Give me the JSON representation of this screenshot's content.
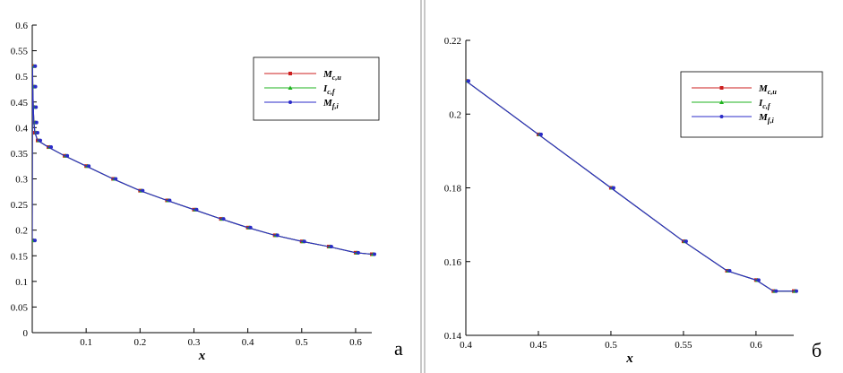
{
  "chart_data": [
    {
      "type": "line",
      "panel_label": "а",
      "xlabel": "x",
      "ylabel": "",
      "xlim": [
        0,
        0.63
      ],
      "ylim": [
        0,
        0.6
      ],
      "xticks": [
        0.1,
        0.2,
        0.3,
        0.4,
        0.5,
        0.6
      ],
      "xtick_labels": [
        "0.1",
        "0.2",
        "0.3",
        "0.4",
        "0.5",
        "0.6"
      ],
      "yticks": [
        0.05,
        0.1,
        0.15,
        0.2,
        0.25,
        0.3,
        0.35,
        0.4,
        0.45,
        0.5,
        0.55,
        0.6
      ],
      "ytick_labels": [
        "0.05",
        "0.1",
        "0.15",
        "0.2",
        "0.25",
        "0.3",
        "0.35",
        "0.4",
        "0.45",
        "0.5",
        "0.55",
        "0.6"
      ],
      "origin_label": "0",
      "grid": false,
      "legend_placement": "top-right",
      "x": [
        0.0,
        0.0005,
        0.001,
        0.002,
        0.003,
        0.005,
        0.01,
        0.03,
        0.06,
        0.1,
        0.15,
        0.2,
        0.25,
        0.3,
        0.35,
        0.4,
        0.45,
        0.5,
        0.55,
        0.6,
        0.63
      ],
      "series": [
        {
          "name": "M",
          "sub": "c,u",
          "color": "#cc1f1f",
          "marker": "square",
          "y": [
            0.18,
            0.52,
            0.48,
            0.44,
            0.41,
            0.39,
            0.375,
            0.362,
            0.345,
            0.325,
            0.3,
            0.277,
            0.258,
            0.24,
            0.222,
            0.205,
            0.19,
            0.178,
            0.168,
            0.156,
            0.153
          ]
        },
        {
          "name": "I",
          "sub": "c,f",
          "color": "#1fb31f",
          "marker": "triangle",
          "y": [
            0.18,
            0.52,
            0.48,
            0.44,
            0.41,
            0.39,
            0.375,
            0.362,
            0.345,
            0.325,
            0.3,
            0.277,
            0.258,
            0.24,
            0.222,
            0.205,
            0.19,
            0.178,
            0.168,
            0.156,
            0.153
          ]
        },
        {
          "name": "M",
          "sub": "f,i",
          "color": "#2b2bc8",
          "marker": "circle",
          "y": [
            0.18,
            0.52,
            0.48,
            0.44,
            0.41,
            0.39,
            0.375,
            0.362,
            0.345,
            0.325,
            0.3,
            0.277,
            0.258,
            0.24,
            0.222,
            0.205,
            0.19,
            0.178,
            0.168,
            0.156,
            0.153
          ]
        }
      ]
    },
    {
      "type": "line",
      "panel_label": "б",
      "xlabel": "x",
      "ylabel": "",
      "xlim": [
        0.4,
        0.626
      ],
      "ylim": [
        0.14,
        0.22
      ],
      "xticks": [
        0.4,
        0.45,
        0.5,
        0.55,
        0.6
      ],
      "xtick_labels": [
        "0.4",
        "0.45",
        "0.5",
        "0.55",
        "0.6"
      ],
      "yticks": [
        0.14,
        0.16,
        0.18,
        0.2,
        0.22
      ],
      "ytick_labels": [
        "0.14",
        "0.16",
        "0.18",
        "0.2",
        "0.22"
      ],
      "grid": false,
      "legend_placement": "top-right",
      "x": [
        0.4,
        0.45,
        0.5,
        0.55,
        0.58,
        0.6,
        0.612,
        0.626
      ],
      "series": [
        {
          "name": "M",
          "sub": "c,u",
          "color": "#cc1f1f",
          "marker": "square",
          "y": [
            0.209,
            0.1945,
            0.18,
            0.1655,
            0.1575,
            0.155,
            0.152,
            0.152
          ]
        },
        {
          "name": "I",
          "sub": "c,f",
          "color": "#1fb31f",
          "marker": "triangle",
          "y": [
            0.209,
            0.1945,
            0.18,
            0.1655,
            0.1575,
            0.155,
            0.152,
            0.152
          ]
        },
        {
          "name": "M",
          "sub": "f,i",
          "color": "#2b2bc8",
          "marker": "circle",
          "y": [
            0.209,
            0.1945,
            0.18,
            0.1655,
            0.1575,
            0.155,
            0.152,
            0.152
          ]
        }
      ]
    }
  ]
}
